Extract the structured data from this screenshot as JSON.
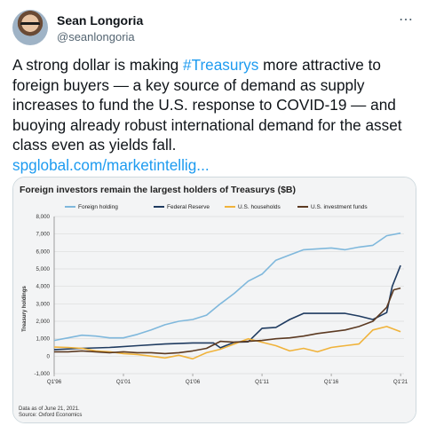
{
  "tweet": {
    "author_name": "Sean Longoria",
    "handle": "@seanlongoria",
    "more_icon": "more-horizontal-icon",
    "text_before": "A strong dollar is making ",
    "hashtag": "#Treasurys",
    "text_after": " more attractive to foreign buyers — a key source of demand as supply increases to fund the U.S. response to COVID-19 — and buoying already robust international demand for the asset class even as yields fall.",
    "link": "spglobal.com/marketintellig..."
  },
  "chart_data": {
    "type": "line",
    "title": "Foreign investors remain the largest holders of Treasurys ($B)",
    "xlabel": "",
    "ylabel": "Treasury holdings",
    "ylim": [
      -1000,
      8000
    ],
    "yticks": [
      -1000,
      0,
      1000,
      2000,
      3000,
      4000,
      5000,
      6000,
      7000,
      8000
    ],
    "ytick_labels": [
      "-1,000",
      "0",
      "1,000",
      "2,000",
      "3,000",
      "4,000",
      "5,000",
      "6,000",
      "7,000",
      "8,000"
    ],
    "xlim": [
      1996.0,
      2021.25
    ],
    "xticks": [
      1996.0,
      2001.0,
      2006.0,
      2011.0,
      2016.0,
      2021.0
    ],
    "xtick_labels": [
      "Q1'96",
      "Q1'01",
      "Q1'06",
      "Q1'11",
      "Q1'16",
      "Q1'21"
    ],
    "grid": true,
    "legend_position": "top",
    "footnote_1": "Data as of June 21, 2021.",
    "footnote_2": "Source: Oxford Economics",
    "series": [
      {
        "name": "Foreign holding",
        "color": "#7fb8dc",
        "points": [
          [
            1996.0,
            900
          ],
          [
            1997.0,
            1050
          ],
          [
            1998.0,
            1200
          ],
          [
            1999.0,
            1150
          ],
          [
            2000.0,
            1050
          ],
          [
            2001.0,
            1050
          ],
          [
            2002.0,
            1250
          ],
          [
            2003.0,
            1500
          ],
          [
            2004.0,
            1800
          ],
          [
            2005.0,
            2000
          ],
          [
            2006.0,
            2100
          ],
          [
            2007.0,
            2350
          ],
          [
            2008.0,
            3000
          ],
          [
            2009.0,
            3600
          ],
          [
            2010.0,
            4300
          ],
          [
            2011.0,
            4700
          ],
          [
            2012.0,
            5500
          ],
          [
            2013.0,
            5800
          ],
          [
            2014.0,
            6100
          ],
          [
            2015.0,
            6150
          ],
          [
            2016.0,
            6200
          ],
          [
            2017.0,
            6100
          ],
          [
            2018.0,
            6250
          ],
          [
            2019.0,
            6350
          ],
          [
            2020.0,
            6900
          ],
          [
            2021.0,
            7050
          ]
        ]
      },
      {
        "name": "Federal Reserve",
        "color": "#1f3b60",
        "points": [
          [
            1996.0,
            380
          ],
          [
            1998.0,
            450
          ],
          [
            2000.0,
            500
          ],
          [
            2002.0,
            600
          ],
          [
            2004.0,
            700
          ],
          [
            2006.0,
            760
          ],
          [
            2007.5,
            760
          ],
          [
            2008.0,
            480
          ],
          [
            2009.0,
            800
          ],
          [
            2010.0,
            820
          ],
          [
            2011.0,
            1600
          ],
          [
            2012.0,
            1650
          ],
          [
            2013.0,
            2100
          ],
          [
            2014.0,
            2450
          ],
          [
            2015.0,
            2450
          ],
          [
            2016.0,
            2450
          ],
          [
            2017.0,
            2450
          ],
          [
            2018.0,
            2300
          ],
          [
            2019.0,
            2100
          ],
          [
            2020.0,
            2500
          ],
          [
            2020.4,
            4000
          ],
          [
            2021.0,
            5200
          ]
        ]
      },
      {
        "name": "U.S. households",
        "color": "#f0b33b",
        "points": [
          [
            1996.0,
            520
          ],
          [
            1997.0,
            500
          ],
          [
            1998.0,
            450
          ],
          [
            1999.0,
            300
          ],
          [
            2000.0,
            250
          ],
          [
            2001.0,
            150
          ],
          [
            2002.0,
            100
          ],
          [
            2003.0,
            0
          ],
          [
            2004.0,
            -100
          ],
          [
            2005.0,
            50
          ],
          [
            2006.0,
            -150
          ],
          [
            2007.0,
            200
          ],
          [
            2008.0,
            400
          ],
          [
            2009.0,
            700
          ],
          [
            2010.0,
            1000
          ],
          [
            2011.0,
            800
          ],
          [
            2012.0,
            600
          ],
          [
            2013.0,
            300
          ],
          [
            2014.0,
            450
          ],
          [
            2015.0,
            250
          ],
          [
            2016.0,
            500
          ],
          [
            2017.0,
            600
          ],
          [
            2018.0,
            700
          ],
          [
            2019.0,
            1500
          ],
          [
            2020.0,
            1700
          ],
          [
            2021.0,
            1400
          ]
        ]
      },
      {
        "name": "U.S. investment funds",
        "color": "#5c3a22",
        "points": [
          [
            1996.0,
            250
          ],
          [
            1997.0,
            250
          ],
          [
            1998.0,
            300
          ],
          [
            1999.0,
            250
          ],
          [
            2000.0,
            200
          ],
          [
            2001.0,
            250
          ],
          [
            2002.0,
            200
          ],
          [
            2003.0,
            200
          ],
          [
            2004.0,
            150
          ],
          [
            2005.0,
            200
          ],
          [
            2006.0,
            300
          ],
          [
            2007.0,
            450
          ],
          [
            2008.0,
            850
          ],
          [
            2009.0,
            800
          ],
          [
            2010.0,
            850
          ],
          [
            2011.0,
            900
          ],
          [
            2012.0,
            1000
          ],
          [
            2013.0,
            1050
          ],
          [
            2014.0,
            1150
          ],
          [
            2015.0,
            1300
          ],
          [
            2016.0,
            1400
          ],
          [
            2017.0,
            1500
          ],
          [
            2018.0,
            1700
          ],
          [
            2019.0,
            2000
          ],
          [
            2020.0,
            2800
          ],
          [
            2020.5,
            3800
          ],
          [
            2021.0,
            3900
          ]
        ]
      }
    ]
  }
}
